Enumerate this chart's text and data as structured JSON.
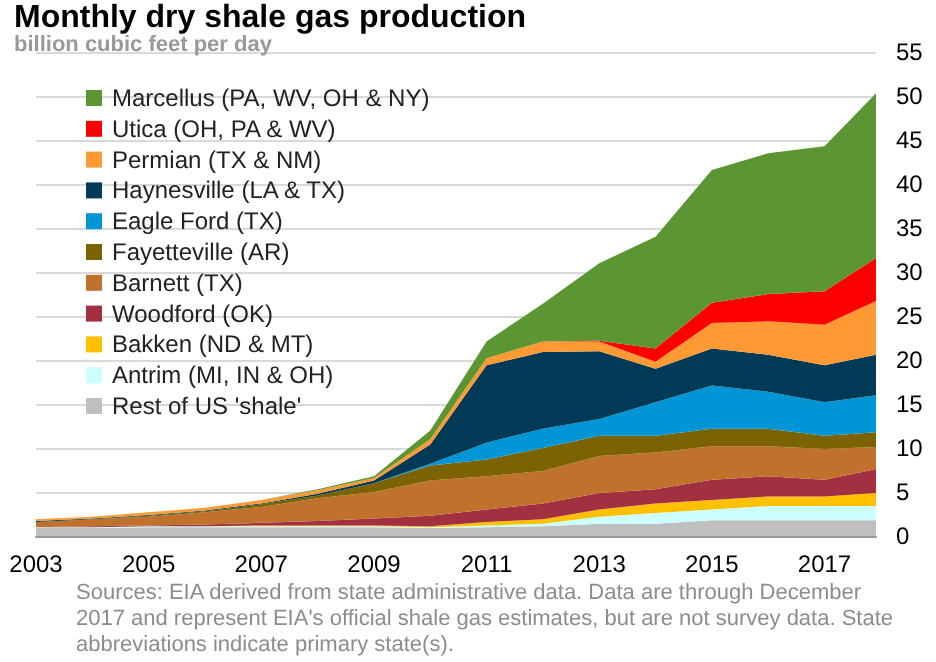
{
  "chart_data": {
    "type": "area",
    "stacked": true,
    "title": "Monthly dry shale gas production",
    "subtitle": "billion cubic feet per day",
    "x": [
      "2003-01",
      "2004-01",
      "2005-01",
      "2006-01",
      "2007-01",
      "2008-01",
      "2009-01",
      "2010-01",
      "2011-01",
      "2012-01",
      "2013-01",
      "2014-01",
      "2015-01",
      "2016-01",
      "2017-01",
      "2017-12"
    ],
    "series": [
      {
        "name": "Rest of US 'shale'",
        "color": "#bfbfbf",
        "values": [
          0.9,
          0.9,
          1.0,
          1.0,
          1.0,
          1.0,
          1.0,
          0.9,
          1.0,
          1.1,
          1.4,
          1.4,
          1.8,
          1.8,
          1.8,
          1.8
        ]
      },
      {
        "name": "Antrim (MI, IN & OH)",
        "color": "#ccffff",
        "values": [
          0.1,
          0.1,
          0.1,
          0.1,
          0.1,
          0.1,
          0.1,
          0.1,
          0.2,
          0.3,
          0.8,
          1.2,
          1.2,
          1.6,
          1.6,
          1.6
        ]
      },
      {
        "name": "Bakken (ND & MT)",
        "color": "#ffc000",
        "values": [
          0,
          0,
          0,
          0,
          0.1,
          0.1,
          0.1,
          0.1,
          0.4,
          0.5,
          0.8,
          1.1,
          1.1,
          1.1,
          1.1,
          1.5
        ]
      },
      {
        "name": "Woodford (OK)",
        "color": "#a33040",
        "values": [
          0,
          0.1,
          0.1,
          0.2,
          0.3,
          0.5,
          0.8,
          1.2,
          1.4,
          1.8,
          1.9,
          1.6,
          2.3,
          2.3,
          1.9,
          2.7
        ]
      },
      {
        "name": "Barnett (TX)",
        "color": "#c0722c",
        "values": [
          0.6,
          0.8,
          1.0,
          1.4,
          1.8,
          2.6,
          3.0,
          4.0,
          3.8,
          3.7,
          4.2,
          4.2,
          3.8,
          3.4,
          3.5,
          2.5
        ]
      },
      {
        "name": "Fayetteville (AR)",
        "color": "#7a6300",
        "values": [
          0,
          0,
          0.1,
          0.1,
          0.3,
          0.3,
          1.0,
          1.7,
          1.9,
          2.6,
          2.3,
          1.9,
          2.0,
          2.0,
          1.5,
          1.7
        ]
      },
      {
        "name": "Eagle Ford (TX)",
        "color": "#0096d6",
        "values": [
          0,
          0,
          0,
          0,
          0,
          0,
          0,
          0.2,
          1.9,
          2.2,
          1.9,
          3.8,
          4.9,
          4.2,
          3.8,
          4.2
        ]
      },
      {
        "name": "Haynesville (LA & TX)",
        "color": "#003a57",
        "values": [
          0.1,
          0.1,
          0.1,
          0.1,
          0.1,
          0.2,
          0.3,
          2.2,
          8.8,
          8.7,
          7.7,
          3.8,
          4.2,
          4.2,
          4.2,
          4.6
        ]
      },
      {
        "name": "Permian (TX & NM)",
        "color": "#ff9933",
        "values": [
          0.2,
          0.2,
          0.3,
          0.3,
          0.4,
          0.4,
          0.3,
          0.6,
          0.8,
          1.2,
          1.1,
          0.8,
          2.9,
          3.8,
          4.6,
          6.1
        ]
      },
      {
        "name": "Utica (OH, PA & WV)",
        "color": "#ff0000",
        "values": [
          0,
          0,
          0,
          0,
          0,
          0,
          0,
          0,
          0,
          0,
          0.1,
          1.5,
          2.3,
          3.1,
          3.8,
          4.9
        ]
      },
      {
        "name": "Marcellus (PA, WV, OH & NY)",
        "color": "#5b9632",
        "values": [
          0,
          0,
          0,
          0,
          0,
          0.1,
          0.2,
          1.0,
          1.9,
          4.3,
          8.8,
          12.7,
          15.1,
          16.0,
          16.5,
          18.7
        ]
      }
    ],
    "xlim": [
      "2003-01",
      "2017-12"
    ],
    "xticks": [
      "2003",
      "2005",
      "2007",
      "2009",
      "2011",
      "2013",
      "2015",
      "2017"
    ],
    "ylim": [
      0,
      55
    ],
    "yticks": [
      0,
      5,
      10,
      15,
      20,
      25,
      30,
      35,
      40,
      45,
      50,
      55
    ],
    "grid": "y",
    "legend": "top left",
    "annotations": [
      "Sources: EIA derived from state administrative data. Data are through December 2017 and represent EIA's official shale gas estimates, but are not survey data. State abbreviations indicate primary state(s)."
    ]
  }
}
